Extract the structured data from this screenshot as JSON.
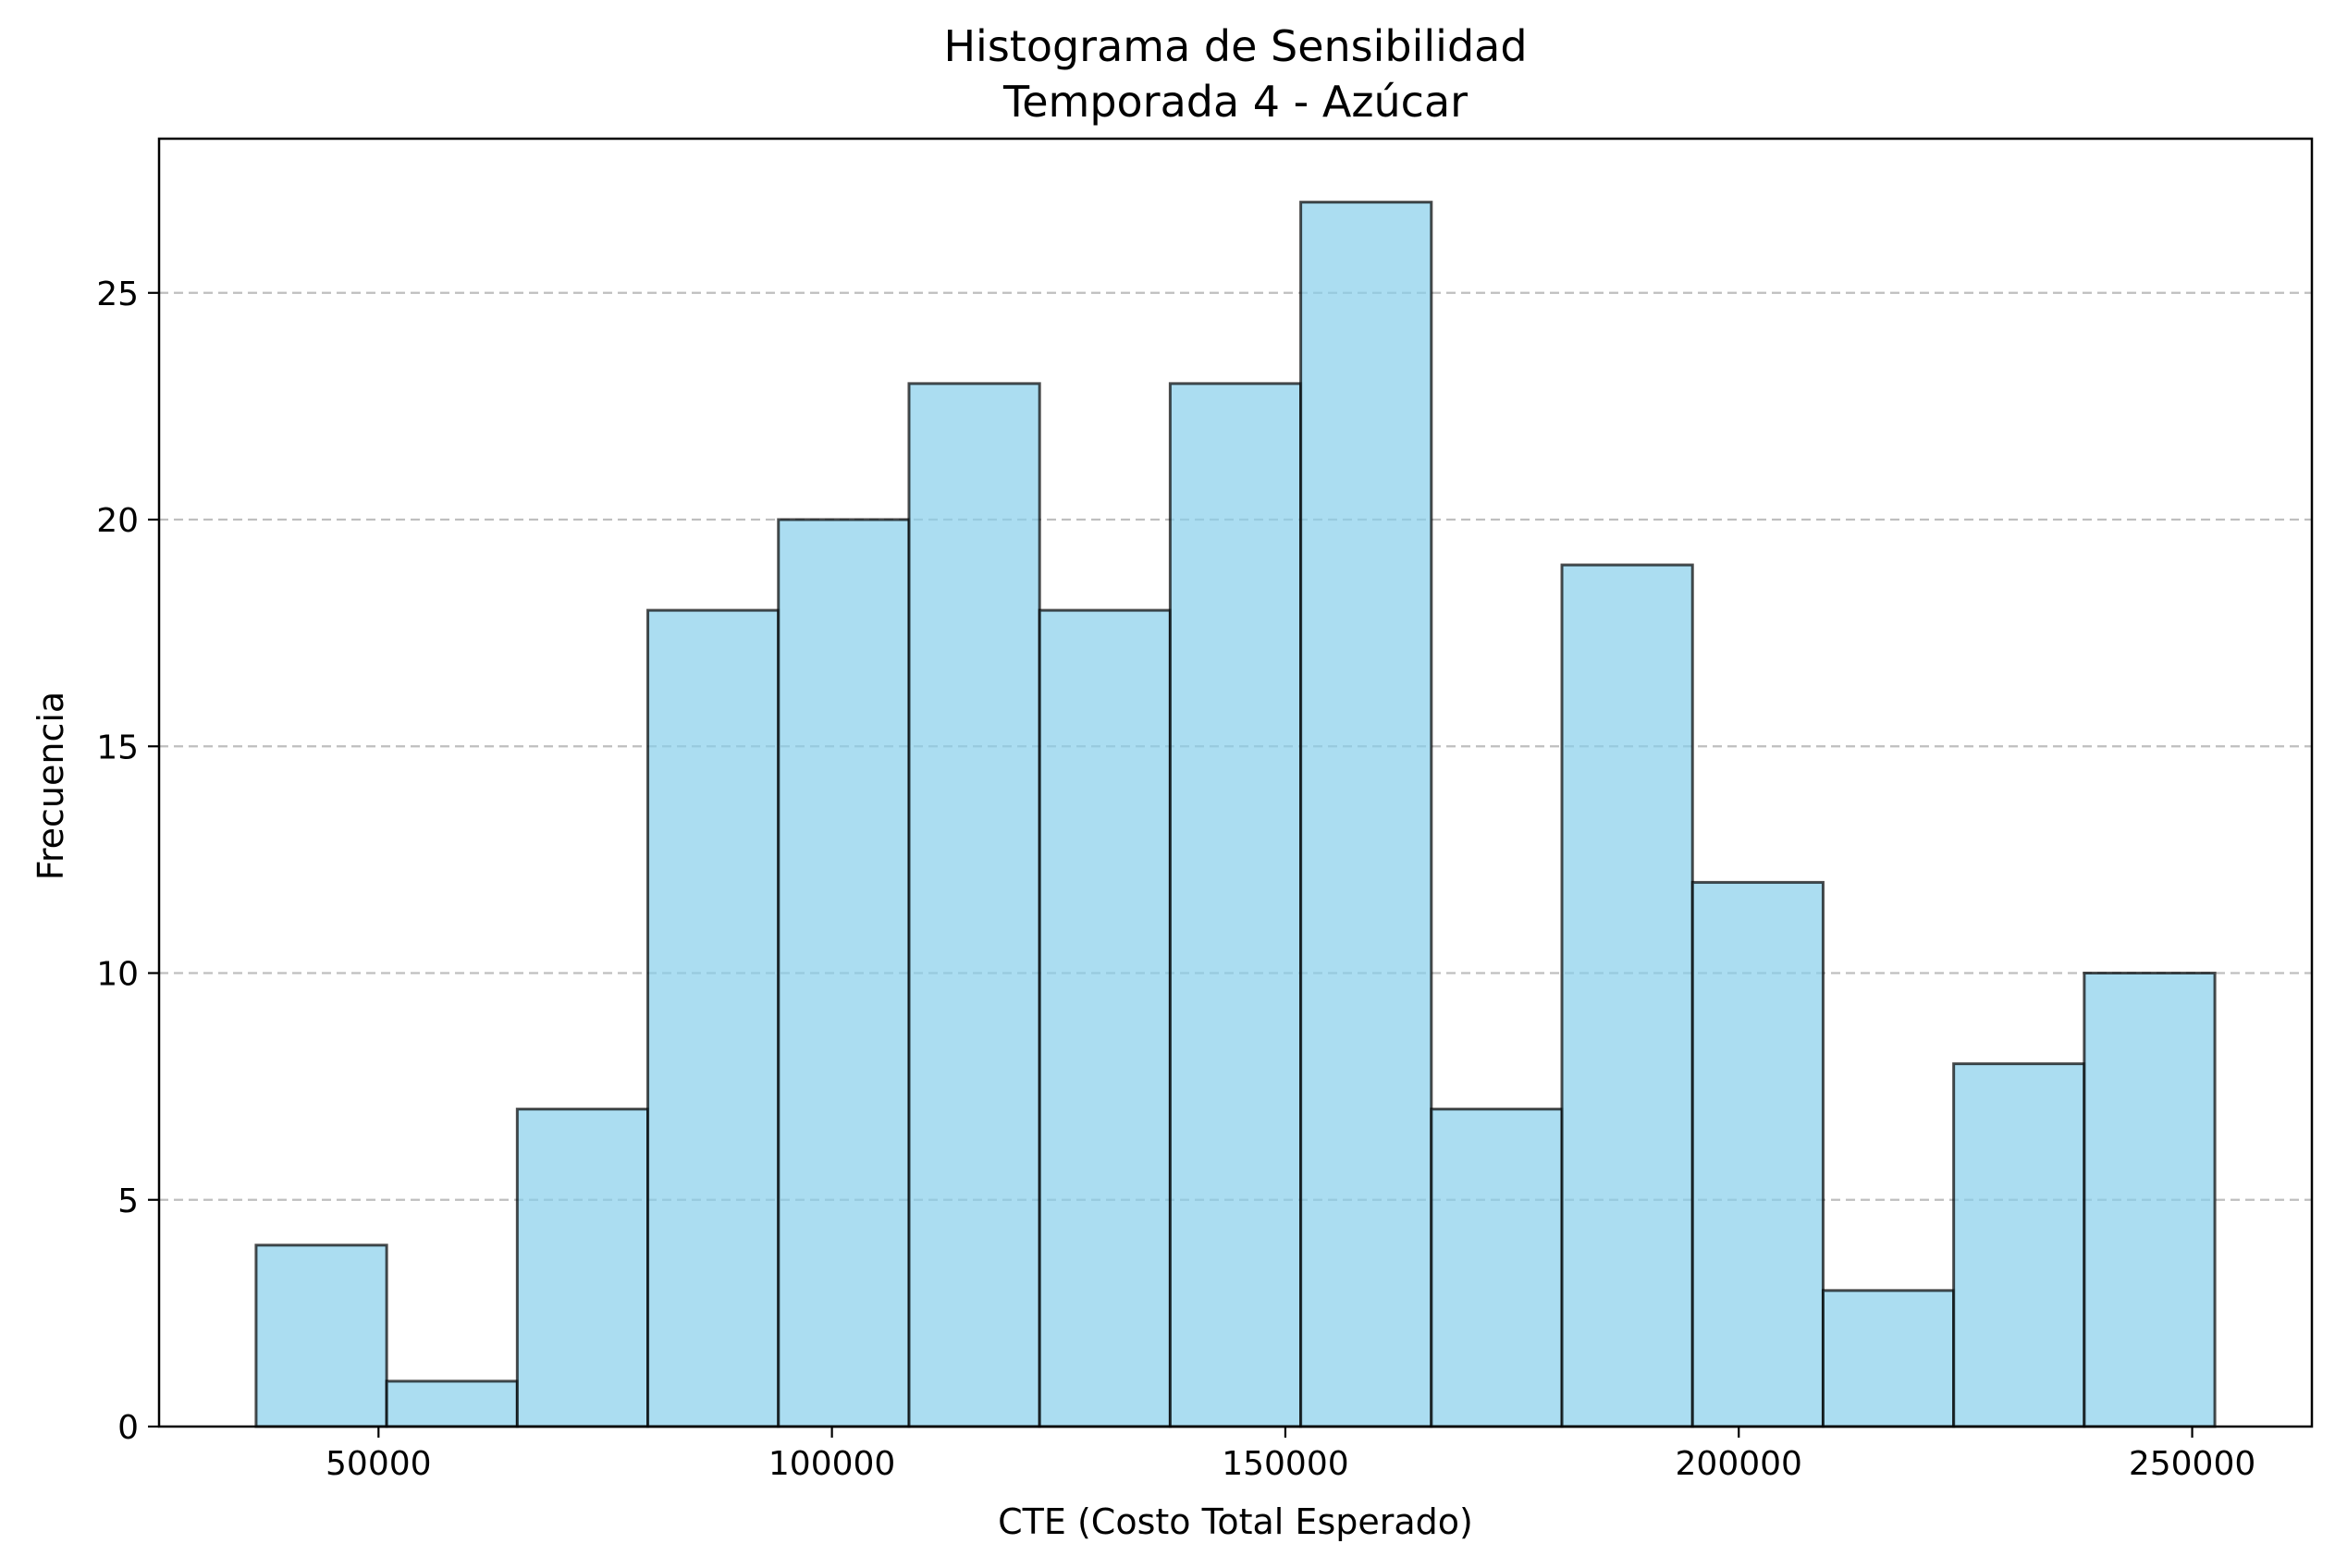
{
  "chart_data": {
    "type": "bar",
    "title": "Histograma de Sensibilidad",
    "subtitle": "Temporada 4 - Azúcar",
    "xlabel": "CTE (Costo Total Esperado)",
    "ylabel": "Frecuencia",
    "bins": [
      [
        36500,
        50900
      ],
      [
        50900,
        65300
      ],
      [
        65300,
        79700
      ],
      [
        79700,
        94100
      ],
      [
        94100,
        108500
      ],
      [
        108500,
        122900
      ],
      [
        122900,
        137300
      ],
      [
        137300,
        151700
      ],
      [
        151700,
        166100
      ],
      [
        166100,
        180500
      ],
      [
        180500,
        194900
      ],
      [
        194900,
        209300
      ],
      [
        209300,
        223700
      ],
      [
        223700,
        238100
      ],
      [
        238100,
        252500
      ]
    ],
    "values": [
      4,
      1,
      7,
      18,
      20,
      23,
      18,
      23,
      27,
      7,
      19,
      12,
      3,
      8,
      10
    ],
    "xlim": [
      25800,
      263200
    ],
    "ylim": [
      0,
      28.4
    ],
    "xticks": [
      50000,
      100000,
      150000,
      200000,
      250000
    ],
    "xtick_labels": [
      "50000",
      "100000",
      "150000",
      "200000",
      "250000"
    ],
    "yticks": [
      0,
      5,
      10,
      15,
      20,
      25
    ],
    "ytick_labels": [
      "0",
      "5",
      "10",
      "15",
      "20",
      "25"
    ],
    "grid": "y-dashed",
    "bar_color": "#87CEEB",
    "edge_color": "#000000"
  }
}
